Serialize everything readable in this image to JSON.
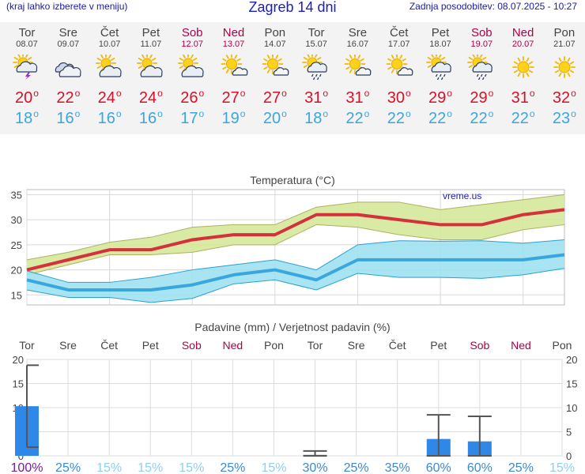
{
  "header": {
    "left_note": "(kraj lahko izberete v meniju)",
    "title": "Zagreb 14 dni",
    "updated": "Zadnja posodobitev: 08.07.2025 - 10:27"
  },
  "days": [
    {
      "name": "Tor",
      "date": "08.07",
      "weekend": false,
      "icon": "sun-cloud-storm-icon",
      "tmax": "20",
      "tmin": "18"
    },
    {
      "name": "Sre",
      "date": "09.07",
      "weekend": false,
      "icon": "cloudy-icon",
      "tmax": "22",
      "tmin": "16"
    },
    {
      "name": "Čet",
      "date": "10.07",
      "weekend": false,
      "icon": "partly-cloudy-icon",
      "tmax": "24",
      "tmin": "16"
    },
    {
      "name": "Pet",
      "date": "11.07",
      "weekend": false,
      "icon": "partly-cloudy-icon",
      "tmax": "24",
      "tmin": "16"
    },
    {
      "name": "Sob",
      "date": "12.07",
      "weekend": true,
      "icon": "partly-cloudy-icon",
      "tmax": "26",
      "tmin": "17"
    },
    {
      "name": "Ned",
      "date": "13.07",
      "weekend": true,
      "icon": "mostly-sunny-icon",
      "tmax": "27",
      "tmin": "19"
    },
    {
      "name": "Pon",
      "date": "14.07",
      "weekend": false,
      "icon": "mostly-sunny-icon",
      "tmax": "27",
      "tmin": "20"
    },
    {
      "name": "Tor",
      "date": "15.07",
      "weekend": false,
      "icon": "sun-cloud-rain-icon",
      "tmax": "31",
      "tmin": "18"
    },
    {
      "name": "Sre",
      "date": "16.07",
      "weekend": false,
      "icon": "mostly-sunny-icon",
      "tmax": "31",
      "tmin": "22"
    },
    {
      "name": "Čet",
      "date": "17.07",
      "weekend": false,
      "icon": "mostly-sunny-icon",
      "tmax": "30",
      "tmin": "22"
    },
    {
      "name": "Pet",
      "date": "18.07",
      "weekend": false,
      "icon": "sun-cloud-rain-icon",
      "tmax": "29",
      "tmin": "22"
    },
    {
      "name": "Sob",
      "date": "19.07",
      "weekend": true,
      "icon": "sun-cloud-rain-icon",
      "tmax": "29",
      "tmin": "22"
    },
    {
      "name": "Ned",
      "date": "20.07",
      "weekend": true,
      "icon": "sunny-icon",
      "tmax": "31",
      "tmin": "22"
    },
    {
      "name": "Pon",
      "date": "21.07",
      "weekend": false,
      "icon": "sunny-icon",
      "tmax": "32",
      "tmin": "23"
    }
  ],
  "colors": {
    "max_line": "#d6303a",
    "max_band": "#d4e89a",
    "min_line": "#3aa6e0",
    "min_band": "#9fe1ef",
    "weekend": "#b0004a",
    "bar": "#2f88e8",
    "pct_high": "#7a1aa0",
    "pct_mid": "#3a8ad0",
    "pct_low": "#8fd0f0"
  },
  "chart_data": [
    {
      "type": "line",
      "title": "Temperatura (°C)",
      "watermark": "vreme.us",
      "ylim": [
        13,
        36
      ],
      "yticks": [
        "15",
        "20",
        "25",
        "30",
        "35"
      ],
      "x": [
        "Tor",
        "Sre",
        "Čet",
        "Pet",
        "Sob",
        "Ned",
        "Pon",
        "Tor",
        "Sre",
        "Čet",
        "Pet",
        "Sob",
        "Ned",
        "Pon"
      ],
      "series": [
        {
          "role": "max",
          "values": [
            20,
            22,
            24,
            24,
            26,
            27,
            27,
            31,
            31,
            30,
            29,
            29,
            31,
            32
          ],
          "band_low": [
            19,
            21,
            23,
            23,
            23.5,
            25,
            25,
            29,
            28.5,
            27,
            26,
            26,
            28,
            29
          ],
          "band_high": [
            22,
            23.5,
            25.5,
            26.5,
            28.5,
            29,
            29,
            32.5,
            33.5,
            33.5,
            32,
            33,
            34,
            35
          ]
        },
        {
          "role": "min",
          "values": [
            18,
            16,
            16,
            16,
            17,
            19,
            20,
            18,
            22,
            22,
            22,
            22,
            22,
            23
          ],
          "band_low": [
            16,
            14.5,
            14.5,
            13.5,
            14.3,
            17.2,
            18,
            16,
            19.3,
            18.5,
            18.5,
            18.3,
            19,
            20.3
          ],
          "band_high": [
            19.8,
            17.5,
            17.5,
            18.5,
            20,
            21,
            22,
            20,
            25,
            25.8,
            25.7,
            25.8,
            25.3,
            26
          ]
        }
      ],
      "grid": true
    },
    {
      "type": "bar",
      "title": "Padavine (mm) / Verjetnost padavin (%)",
      "ylim": [
        0,
        20
      ],
      "yticks": [
        "0",
        "5",
        "10",
        "15",
        "20"
      ],
      "categories": [
        "Tor",
        "Sre",
        "Čet",
        "Pet",
        "Sob",
        "Ned",
        "Pon",
        "Tor",
        "Sre",
        "Čet",
        "Pet",
        "Sob",
        "Ned",
        "Pon"
      ],
      "weekend": [
        false,
        false,
        false,
        false,
        true,
        true,
        false,
        false,
        false,
        false,
        false,
        true,
        true,
        false
      ],
      "values": [
        10.3,
        0,
        0,
        0,
        0,
        0,
        0,
        0.2,
        0,
        0,
        3.5,
        3,
        0,
        0
      ],
      "range_low": [
        1.8,
        null,
        null,
        null,
        null,
        null,
        null,
        0,
        null,
        null,
        0,
        0,
        null,
        null
      ],
      "range_high": [
        18.8,
        null,
        null,
        null,
        null,
        null,
        null,
        1,
        null,
        null,
        8.5,
        8.2,
        null,
        null
      ],
      "probability": [
        "100%",
        "25%",
        "15%",
        "15%",
        "15%",
        "25%",
        "15%",
        "30%",
        "25%",
        "35%",
        "60%",
        "60%",
        "25%",
        "15%"
      ],
      "probability_level": [
        "high",
        "mid",
        "low",
        "low",
        "low",
        "mid",
        "low",
        "mid",
        "mid",
        "mid",
        "mid",
        "mid",
        "mid",
        "low"
      ],
      "grid": true
    }
  ]
}
